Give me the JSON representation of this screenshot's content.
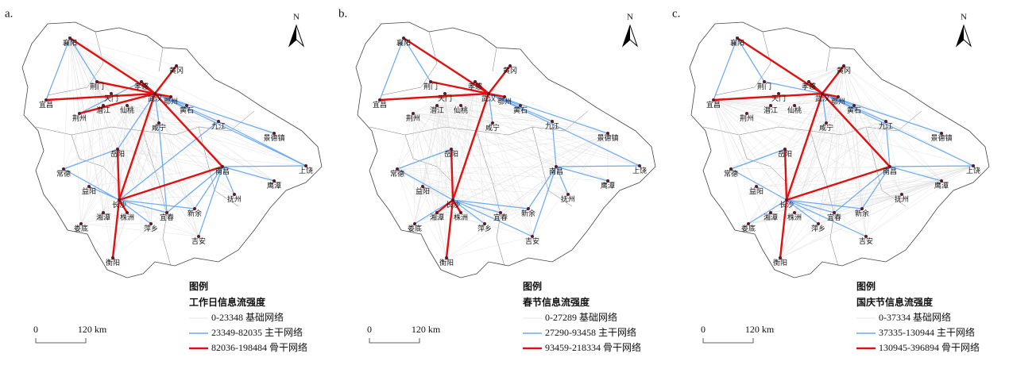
{
  "panels": [
    {
      "label": "a.",
      "legend_title": "工作日信息流强度",
      "legend_items": [
        "0-23348 基础网络",
        "23349-82035 主干网络",
        "82036-198484 骨干网络"
      ]
    },
    {
      "label": "b.",
      "legend_title": "春节信息流强度",
      "legend_items": [
        "0-27289 基础网络",
        "27290-93458 主干网络",
        "93459-218334 骨干网络"
      ]
    },
    {
      "label": "c.",
      "legend_title": "国庆节信息流强度",
      "legend_items": [
        "0-37334 基础网络",
        "37335-130944 主干网络",
        "130945-396894 骨干网络"
      ]
    }
  ],
  "legend_heading": "图例",
  "north": "N",
  "scale": {
    "start": "0",
    "end": "120 km"
  },
  "cities": [
    "襄阳",
    "黄冈",
    "孝感",
    "荆门",
    "宜昌",
    "天门",
    "武汉",
    "鄂州",
    "潜江",
    "仙桃",
    "黄石",
    "荆州",
    "咸宁",
    "九江",
    "景德镇",
    "岳阳",
    "上饶",
    "常德",
    "南昌",
    "鹰潭",
    "益阳",
    "长沙",
    "抚州",
    "湘潭",
    "株洲",
    "宜春",
    "新余",
    "娄底",
    "萍乡",
    "吉安",
    "衡阳"
  ]
}
